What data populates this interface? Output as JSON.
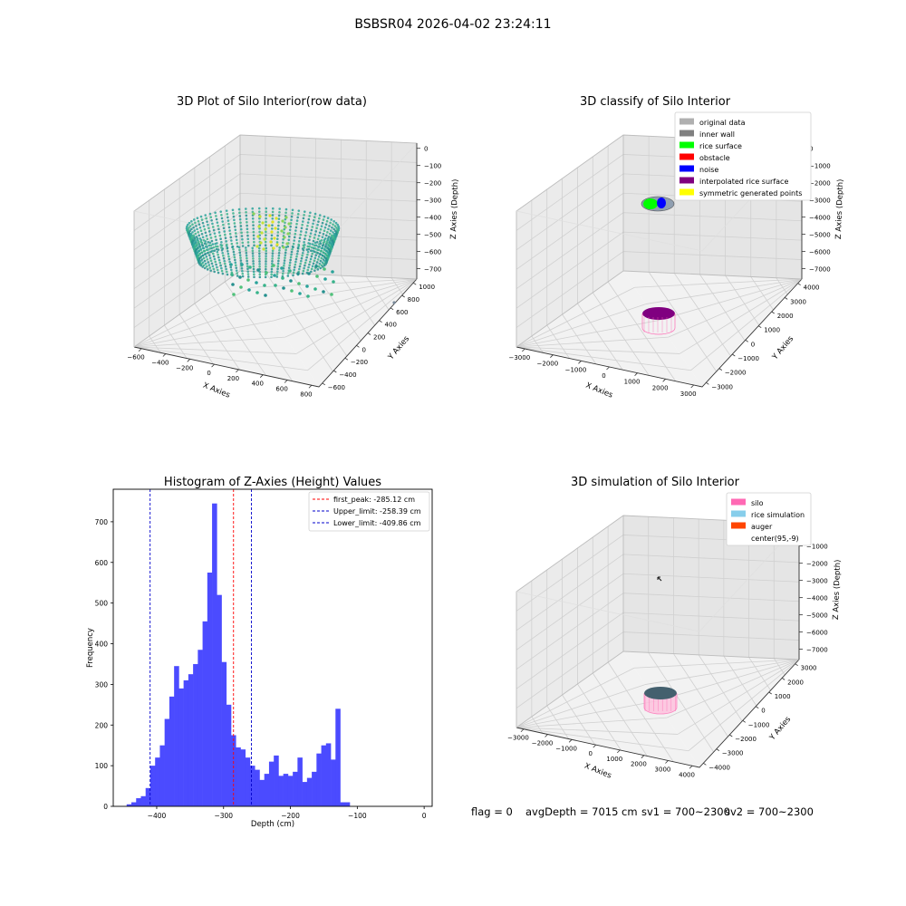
{
  "suptitle": "BSBSR04 2026-04-02 23:24:11",
  "footer": {
    "flag": "flag = 0",
    "avg_depth": "avgDepth = 7015 cm",
    "sv1": "sv1 = 700~2300",
    "sv2": "sv2 = 700~2300"
  },
  "colors": {
    "hist_bar": "#4b4bff",
    "first_peak_line": "#ff0000",
    "limit_line": "#0000cc",
    "original_data": "#b0b0b0",
    "inner_wall": "#808080",
    "rice_surface": "#00ff00",
    "obstacle": "#ff0000",
    "noise": "#0000ff",
    "interpolated_rice_surface": "#800080",
    "symmetric_generated_points": "#ffff00",
    "silo": "#ff69b4",
    "rice_simulation": "#87ceeb",
    "auger": "#ff4500"
  },
  "chart_data": [
    {
      "type": "scatter3d",
      "title": "3D Plot of Silo Interior(row data)",
      "xlabel": "X Axies",
      "ylabel": "Y Axies",
      "zlabel": "Z Axies (Depth)",
      "x_ticks": [
        "−600",
        "−400",
        "−200",
        "0",
        "200",
        "400",
        "600",
        "800"
      ],
      "y_ticks": [
        "−600",
        "−400",
        "−200",
        "0",
        "200",
        "400",
        "600",
        "800",
        "1000"
      ],
      "z_ticks": [
        "0",
        "−100",
        "−200",
        "−300",
        "−400",
        "−500",
        "−600",
        "−700"
      ],
      "xlim": [
        -600,
        800
      ],
      "ylim": [
        -600,
        1000
      ],
      "zlim": [
        -750,
        0
      ]
    },
    {
      "type": "scatter3d",
      "title": "3D classify of Silo Interior",
      "xlabel": "X Axies",
      "ylabel": "Y Axies",
      "zlabel": "Z Axies (Depth)",
      "x_ticks": [
        "−3000",
        "−2000",
        "−1000",
        "0",
        "1000",
        "2000",
        "3000"
      ],
      "y_ticks": [
        "−3000",
        "−2000",
        "−1000",
        "0",
        "1000",
        "2000",
        "3000",
        "4000"
      ],
      "z_ticks": [
        "0",
        "−1000",
        "−2000",
        "−3000",
        "−4000",
        "−5000",
        "−6000",
        "−7000"
      ],
      "legend": [
        "original data",
        "inner wall",
        "rice surface",
        "obstacle",
        "noise",
        "interpolated rice surface",
        "symmetric generated points"
      ],
      "legend_position": "top-right"
    },
    {
      "type": "bar",
      "title": "Histogram of Z-Axies (Height) Values",
      "xlabel": "Depth (cm)",
      "ylabel": "Frequency",
      "x_ticks": [
        "−400",
        "−300",
        "−200",
        "−100",
        "0"
      ],
      "y_ticks": [
        "0",
        "100",
        "200",
        "300",
        "400",
        "500",
        "600",
        "700"
      ],
      "xlim": [
        -465,
        12
      ],
      "ylim": [
        0,
        780
      ],
      "bin_start": -445,
      "bin_width": 7.1,
      "values": [
        5,
        10,
        20,
        25,
        45,
        100,
        120,
        150,
        215,
        270,
        345,
        290,
        310,
        325,
        350,
        385,
        455,
        575,
        745,
        520,
        355,
        250,
        175,
        145,
        140,
        120,
        100,
        90,
        65,
        80,
        110,
        125,
        75,
        80,
        75,
        85,
        120,
        60,
        70,
        85,
        130,
        150,
        155,
        115,
        240,
        10,
        10
      ],
      "vlines": [
        {
          "name": "first_peak: -285.12 cm",
          "x": -285.12,
          "color": "#ff0000"
        },
        {
          "name": "Upper_limit: -258.39 cm",
          "x": -258.39,
          "color": "#0000cc"
        },
        {
          "name": "Lower_limit: -409.86 cm",
          "x": -409.86,
          "color": "#0000cc"
        }
      ],
      "legend_position": "top-right"
    },
    {
      "type": "scatter3d",
      "title": "3D simulation of Silo Interior",
      "xlabel": "X Axies",
      "ylabel": "Y Axies",
      "zlabel": "Z Axies (Depth)",
      "x_ticks": [
        "−3000",
        "−2000",
        "−1000",
        "0",
        "1000",
        "2000",
        "3000",
        "4000"
      ],
      "y_ticks": [
        "−4000",
        "−3000",
        "−2000",
        "−1000",
        "0",
        "1000",
        "2000",
        "3000"
      ],
      "z_ticks": [
        "0",
        "−1000",
        "−2000",
        "−3000",
        "−4000",
        "−5000",
        "−6000",
        "−7000"
      ],
      "legend": [
        "silo",
        "rice simulation",
        "auger",
        "center(95,-9)"
      ],
      "legend_position": "top-right"
    }
  ]
}
